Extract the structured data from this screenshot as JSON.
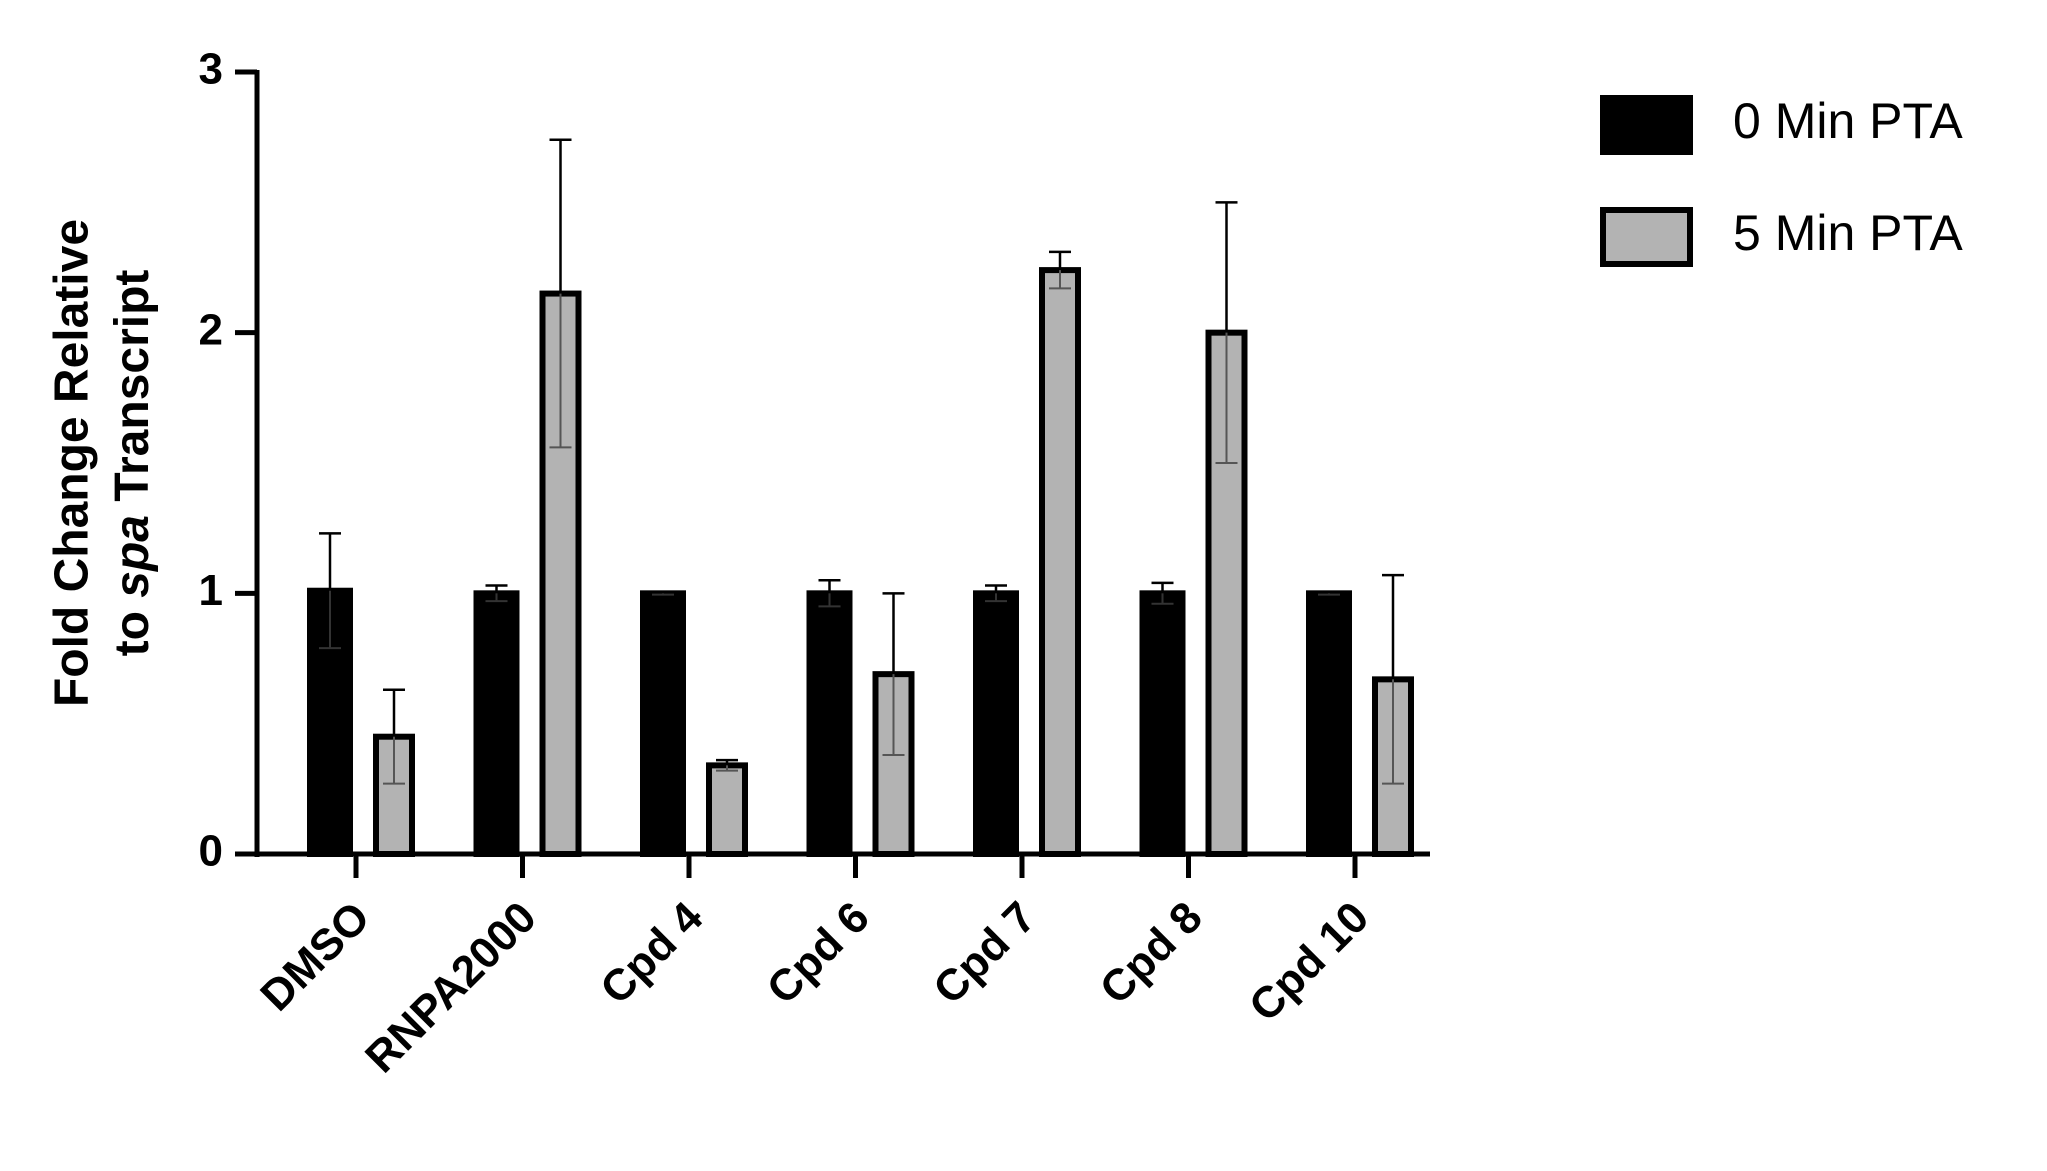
{
  "chart_data": {
    "type": "bar",
    "y_label": {
      "line1": "Fold Change Relative",
      "line2": [
        "to",
        "spa",
        "Transcript"
      ]
    },
    "categories": [
      "DMSO",
      "RNPA2000",
      "Cpd 4",
      "Cpd 6",
      "Cpd 7",
      "Cpd 8",
      "Cpd 10"
    ],
    "series": [
      {
        "name": "0 Min PTA",
        "color": "#000000",
        "values": [
          1.01,
          1.0,
          1.0,
          1.0,
          1.0,
          1.0,
          1.0
        ],
        "errors": [
          0.22,
          0.03,
          0.005,
          0.05,
          0.03,
          0.04,
          0.005
        ]
      },
      {
        "name": "5 Min PTA",
        "color": "#b3b3b3",
        "values": [
          0.45,
          2.15,
          0.34,
          0.69,
          2.24,
          2.0,
          0.67
        ],
        "errors": [
          0.18,
          0.59,
          0.02,
          0.31,
          0.07,
          0.5,
          0.4
        ]
      }
    ],
    "ylim": [
      0,
      3
    ],
    "yticks": [
      0,
      1,
      2,
      3
    ],
    "legend": "upper right"
  }
}
